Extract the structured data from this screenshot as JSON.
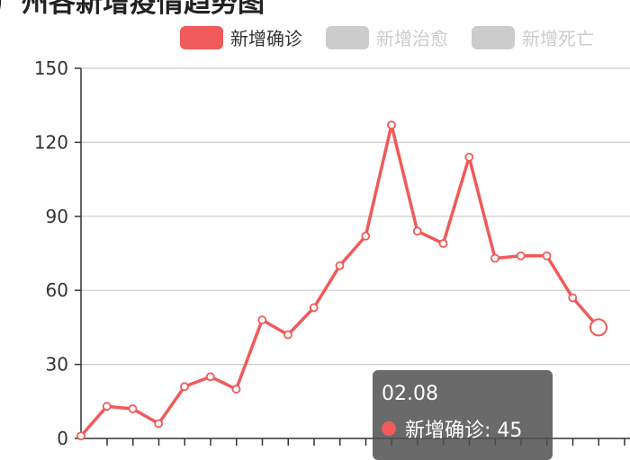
{
  "title": "广州各新增疫情趋势图",
  "legend": [
    {
      "label": "新增确诊",
      "active": true
    },
    {
      "label": "新增治愈",
      "active": false
    },
    {
      "label": "新增死亡",
      "active": false
    }
  ],
  "colors": {
    "series": "#f05a5a",
    "inactive": "#cccccc",
    "grid": "#cccccc",
    "axis": "#333333"
  },
  "tooltip": {
    "date": "02.08",
    "series_label": "新增确诊",
    "value": "45"
  },
  "chart_data": {
    "type": "line",
    "ylim": [
      0,
      150
    ],
    "yticks": [
      0,
      30,
      60,
      90,
      120,
      150
    ],
    "grid": true,
    "legend_position": "top-right",
    "series": [
      {
        "name": "新增确诊",
        "values": [
          1,
          13,
          12,
          6,
          21,
          25,
          20,
          48,
          42,
          53,
          70,
          82,
          127,
          84,
          79,
          114,
          73,
          74,
          74,
          57,
          45
        ]
      }
    ]
  }
}
